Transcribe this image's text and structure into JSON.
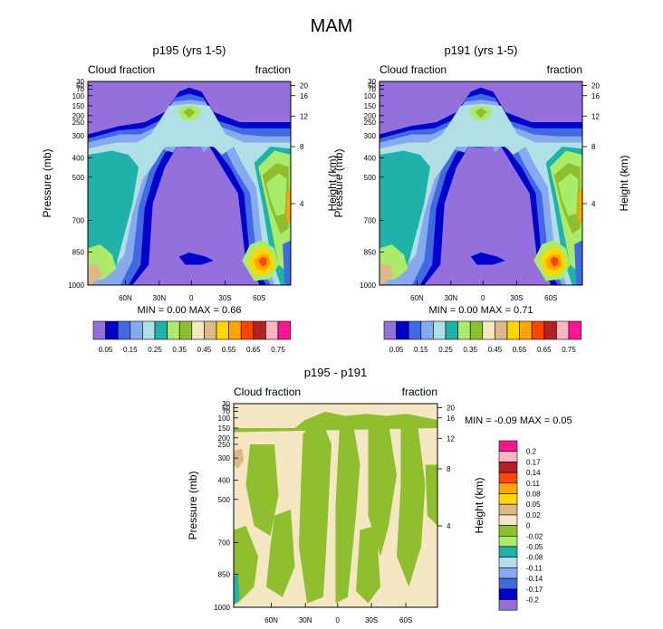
{
  "page_title": "MAM",
  "colors": {
    "purple": "#9370db",
    "navy": "#0000cd",
    "blue": "#4169e1",
    "cornflower": "#87a9f0",
    "powder": "#b0e0e6",
    "teal": "#20b2aa",
    "lightgreen": "#aaec6a",
    "olive": "#8fbf2f",
    "wheat": "#f5e6c4",
    "tan": "#deb887",
    "gold": "#ffd700",
    "orange": "#ffa500",
    "orangered": "#ff4500",
    "firebrick": "#b22222",
    "pink": "#ffb6c1",
    "magenta": "#ff1493"
  },
  "chart_data": [
    {
      "type": "heatmap",
      "title": "p195 (yrs 1-5)",
      "left_label": "Cloud fraction",
      "right_label": "fraction",
      "ylabel": "Pressure (mb)",
      "ylabel_right": "Height (km)",
      "x_ticks": [
        "60N",
        "30N",
        "0",
        "30S",
        "60S"
      ],
      "y_ticks": [
        "30",
        "50",
        "70",
        "100",
        "150",
        "200",
        "250",
        "300",
        "400",
        "500",
        "700",
        "850",
        "1000"
      ],
      "y_ticks_right": [
        "20",
        "16",
        "12",
        "8",
        "4"
      ],
      "stats": {
        "min_label": "MIN =",
        "min": "0.00",
        "max_label": "MAX =",
        "max": "0.66"
      },
      "colorbar_labels": [
        "0.05",
        "0.15",
        "0.25",
        "0.35",
        "0.45",
        "0.55",
        "0.65",
        "0.75"
      ]
    },
    {
      "type": "heatmap",
      "title": "p191 (yrs 1-5)",
      "left_label": "Cloud fraction",
      "right_label": "fraction",
      "ylabel": "Pressure (mb)",
      "ylabel_right": "Height (km)",
      "x_ticks": [
        "60N",
        "30N",
        "0",
        "30S",
        "60S"
      ],
      "y_ticks": [
        "30",
        "50",
        "70",
        "100",
        "150",
        "200",
        "250",
        "300",
        "400",
        "500",
        "700",
        "850",
        "1000"
      ],
      "y_ticks_right": [
        "20",
        "16",
        "12",
        "8",
        "4"
      ],
      "stats": {
        "min_label": "MIN =",
        "min": "0.00",
        "max_label": "MAX =",
        "max": "0.71"
      },
      "colorbar_labels": [
        "0.05",
        "0.15",
        "0.25",
        "0.35",
        "0.45",
        "0.55",
        "0.65",
        "0.75"
      ]
    },
    {
      "type": "heatmap",
      "title": "p195 - p191",
      "left_label": "Cloud fraction",
      "right_label": "fraction",
      "ylabel": "Pressure (mb)",
      "ylabel_right": "Height (km)",
      "x_ticks": [
        "60N",
        "30N",
        "0",
        "30S",
        "60S"
      ],
      "y_ticks": [
        "30",
        "50",
        "70",
        "100",
        "150",
        "200",
        "250",
        "300",
        "400",
        "500",
        "700",
        "850",
        "1000"
      ],
      "y_ticks_right": [
        "20",
        "16",
        "12",
        "8",
        "4"
      ],
      "stats": {
        "min_label": "MIN =",
        "min": "-0.09",
        "max_label": "MAX =",
        "max": "0.05"
      },
      "colorbar_labels": [
        "0.2",
        "0.17",
        "0.14",
        "0.11",
        "0.08",
        "0.05",
        "0.02",
        "0",
        "-0.02",
        "-0.05",
        "-0.08",
        "-0.11",
        "-0.14",
        "-0.17",
        "-0.2"
      ]
    }
  ]
}
